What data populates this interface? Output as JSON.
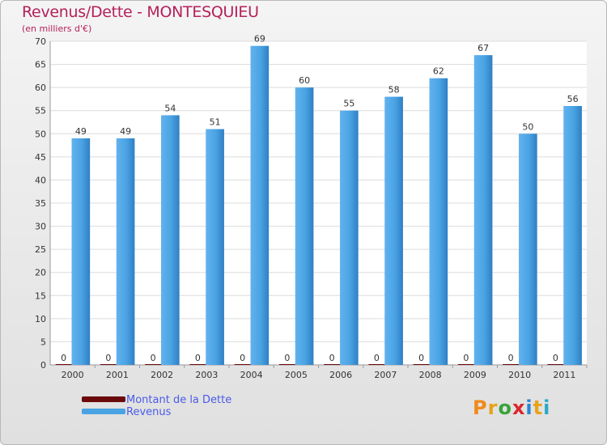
{
  "chart_data": {
    "type": "bar",
    "title": "Revenus/Dette - MONTESQUIEU",
    "subtitle": "(en milliers d'€)",
    "categories": [
      "2000",
      "2001",
      "2002",
      "2003",
      "2004",
      "2005",
      "2006",
      "2007",
      "2008",
      "2009",
      "2010",
      "2011"
    ],
    "series": [
      {
        "name": "Montant de la Dette",
        "color": "#6b0a0a",
        "values": [
          0,
          0,
          0,
          0,
          0,
          0,
          0,
          0,
          0,
          0,
          0,
          0
        ]
      },
      {
        "name": "Revenus",
        "color": "#4aa3e3",
        "values": [
          49,
          49,
          54,
          51,
          69,
          60,
          55,
          58,
          62,
          67,
          50,
          56
        ]
      }
    ],
    "ylim": [
      0,
      70
    ],
    "yticks": [
      0,
      5,
      10,
      15,
      20,
      25,
      30,
      35,
      40,
      45,
      50,
      55,
      60,
      65,
      70
    ],
    "xlabel": "",
    "ylabel": "",
    "legend_position": "bottom-left"
  },
  "brand": {
    "text": "Proxiti",
    "letter_colors": [
      "#f08a1c",
      "#e8a21a",
      "#3aa33a",
      "#d9262d",
      "#2a86d6",
      "#e8a21a",
      "#2aa7c9"
    ]
  }
}
